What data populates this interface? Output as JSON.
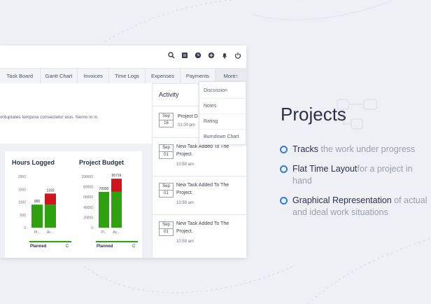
{
  "colors": {
    "accent": "#2f7fd8",
    "planned_green": "#2ea10f",
    "actual_red": "#d0131c",
    "page_bg": "#eef0f5"
  },
  "toolbar": {
    "icons": [
      "search-icon",
      "notes-icon",
      "clock-icon",
      "add-icon",
      "bell-icon",
      "power-icon"
    ]
  },
  "tabs": [
    {
      "label": "Task Board"
    },
    {
      "label": "Gantt Chart"
    },
    {
      "label": "Invoices"
    },
    {
      "label": "Time Logs"
    },
    {
      "label": "Expenses"
    },
    {
      "label": "Payments"
    },
    {
      "label": "More↑"
    }
  ],
  "summary_text": "voluptates tempora consectetur eius. Nemo in in",
  "hours_card": {
    "title": "Hours Logged",
    "legend": "Planned",
    "legend_cut": "C"
  },
  "budget_card": {
    "title": "Project Budget",
    "legend": "Planned",
    "legend_cut": "C"
  },
  "chart_data": [
    {
      "type": "bar",
      "title": "Hours Logged",
      "categories": [
        "Pl...",
        "Ac..."
      ],
      "series": [
        {
          "name": "Planned",
          "values": [
            900,
            900
          ]
        },
        {
          "name": "Actual",
          "values": [
            0,
            433
          ]
        }
      ],
      "data_labels": [
        "900",
        "1333"
      ],
      "ylim": [
        0,
        2000
      ],
      "yticks": [
        "0",
        "500",
        "1000",
        "1500",
        "2000"
      ],
      "legend": [
        "Planned",
        "C"
      ]
    },
    {
      "type": "bar",
      "title": "Project Budget",
      "categories": [
        "Pl...",
        "Ac..."
      ],
      "series": [
        {
          "name": "Planned",
          "values": [
            70000,
            70000
          ]
        },
        {
          "name": "Actual",
          "values": [
            0,
            25716
          ]
        }
      ],
      "data_labels": [
        "70000",
        "95716"
      ],
      "ylim": [
        0,
        100000
      ],
      "yticks": [
        "0",
        "20000",
        "40000",
        "60000",
        "80000",
        "100000"
      ],
      "legend": [
        "Planned",
        "C"
      ]
    }
  ],
  "activity": {
    "title": "Activity",
    "items": [
      {
        "month": "Sep",
        "day": "16",
        "text": "Project D",
        "time": "01:00 pm"
      },
      {
        "month": "Sep",
        "day": "01",
        "text": "New Task Added To The Project.",
        "time": "10:59 am"
      },
      {
        "month": "Sep",
        "day": "01",
        "text": "New Task Added To The Project.",
        "time": "10:59 am"
      },
      {
        "month": "Sep",
        "day": "01",
        "text": "New Task Added To The Project.",
        "time": "10:59 am"
      }
    ]
  },
  "more_menu": {
    "items": [
      {
        "label": "Discussion"
      },
      {
        "label": "Notes"
      },
      {
        "label": "Rating"
      },
      {
        "label": "Burndown Chart"
      }
    ]
  },
  "feature": {
    "title": "Projects",
    "items": [
      {
        "strong": "Tracks",
        "light": " the work under progress"
      },
      {
        "strong": "Flat Time Layout",
        "light": "for a project in hand"
      },
      {
        "strong": "Graphical Representation",
        "light": " of actual and ideal work situations"
      }
    ]
  }
}
